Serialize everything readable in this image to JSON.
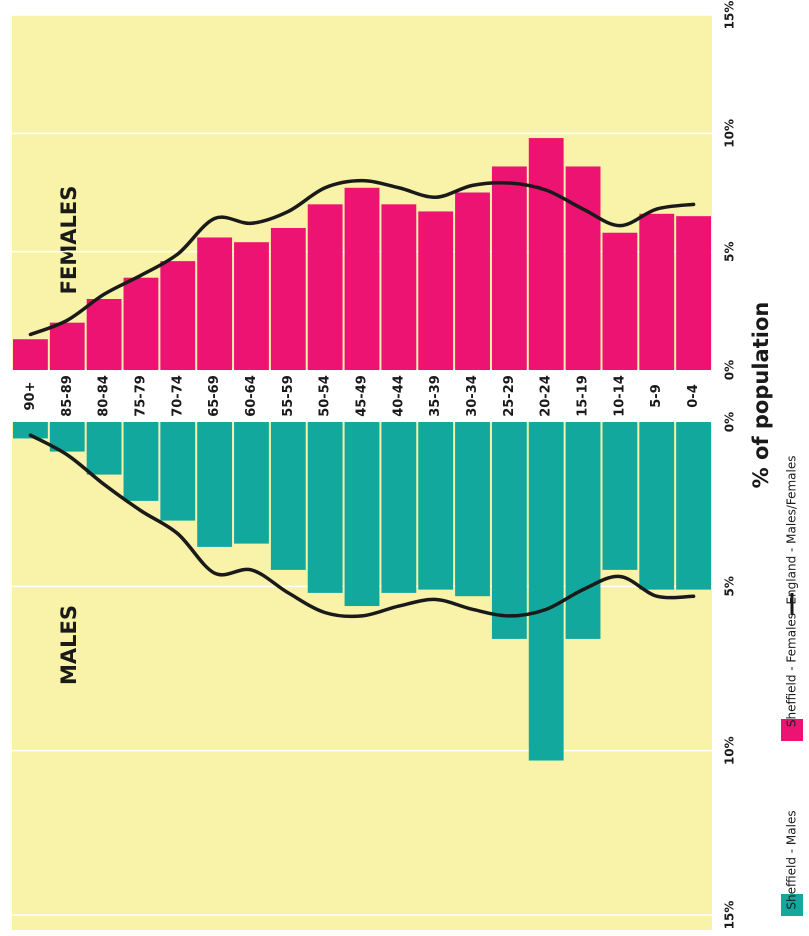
{
  "chart_data": {
    "type": "bar",
    "orientation": "vertical-rotated",
    "female_label": "FEMALES",
    "male_label": "MALES",
    "axis_title": "% of population",
    "categories": [
      "90+",
      "85-89",
      "80-84",
      "75-79",
      "70-74",
      "65-69",
      "60-64",
      "55-59",
      "50-54",
      "45-49",
      "40-44",
      "35-39",
      "30-34",
      "25-29",
      "20-24",
      "15-19",
      "10-14",
      "5-9",
      "0-4"
    ],
    "series": [
      {
        "name": "Sheffield - Males",
        "color": "#13a89e",
        "axis": "y2",
        "values": [
          0.5,
          0.9,
          1.6,
          2.4,
          3.0,
          3.8,
          3.7,
          4.5,
          5.2,
          5.6,
          5.2,
          5.1,
          5.3,
          6.6,
          10.3,
          6.6,
          4.5,
          5.1,
          5.1
        ]
      },
      {
        "name": "Sheffield - Females",
        "color": "#ec1373",
        "values": [
          1.3,
          2.0,
          3.0,
          3.9,
          4.6,
          5.6,
          5.4,
          6.0,
          7.0,
          7.7,
          7.0,
          6.7,
          7.5,
          8.6,
          9.8,
          8.6,
          5.8,
          6.6,
          6.5
        ]
      },
      {
        "name": "England - Males/Females",
        "color": "#1a1a1a",
        "values": [
          1.5,
          2.1,
          3.2,
          4.0,
          4.9,
          6.4,
          6.2,
          6.7,
          7.7,
          8.0,
          7.7,
          7.3,
          7.8,
          7.9,
          7.6,
          6.8,
          6.1,
          6.8,
          7.0
        ],
        "male_values": [
          0.4,
          1.0,
          1.9,
          2.7,
          3.4,
          4.6,
          4.5,
          5.2,
          5.8,
          5.9,
          5.6,
          5.4,
          5.7,
          5.9,
          5.7,
          5.1,
          4.7,
          5.3,
          5.3
        ]
      }
    ],
    "ylim": [
      0,
      15
    ],
    "yticks": [
      {
        "value": 0,
        "label": "0%"
      },
      {
        "value": 5,
        "label": "5%"
      },
      {
        "value": 10,
        "label": "10%"
      },
      {
        "value": 15,
        "label": "15%"
      }
    ],
    "y2lim": [
      0,
      15
    ],
    "y2ticks": [
      {
        "value": 0,
        "label": "0%"
      },
      {
        "value": 5,
        "label": "5%"
      },
      {
        "value": 10,
        "label": "10%"
      },
      {
        "value": 15,
        "label": "15%"
      }
    ],
    "background": "#f8f3a8",
    "grid": true
  }
}
